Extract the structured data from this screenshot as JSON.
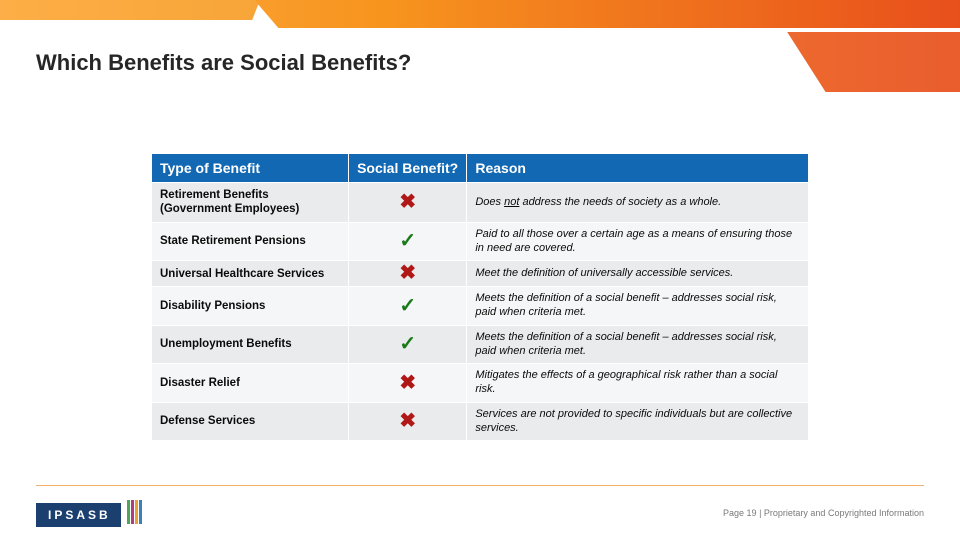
{
  "title": "Which Benefits are Social Benefits?",
  "colors": {
    "header_bg": "#1268b3",
    "header_text": "#ffffff",
    "row_odd_bg": "#e9ebed",
    "row_even_bg": "#f5f6f7",
    "check_color": "#1a7a1a",
    "cross_color": "#b01818",
    "gradient_start": "#fdae46",
    "gradient_end": "#e84f1c",
    "footer_line": "#f4b06a",
    "logo_bg": "#1b3f6e"
  },
  "table": {
    "col_widths_pct": [
      30,
      18,
      52
    ],
    "headers": {
      "c1": "Type of Benefit",
      "c2": "Social Benefit?",
      "c3": "Reason"
    },
    "rows": [
      {
        "type": "Retirement Benefits (Government Employees)",
        "social": false,
        "reason_prefix": "Does ",
        "reason_underlined": "not",
        "reason_suffix": " address the needs of society as a whole."
      },
      {
        "type": "State Retirement Pensions",
        "social": true,
        "reason": "Paid to all those over a certain age as a means of ensuring those in need are covered."
      },
      {
        "type": "Universal Healthcare Services",
        "social": false,
        "reason": "Meet the definition of universally accessible services."
      },
      {
        "type": "Disability Pensions",
        "social": true,
        "reason": "Meets the definition of a social benefit – addresses social risk, paid when criteria met."
      },
      {
        "type": "Unemployment Benefits",
        "social": true,
        "reason": "Meets the definition of a social benefit – addresses social risk, paid when criteria met."
      },
      {
        "type": "Disaster Relief",
        "social": false,
        "reason": "Mitigates the effects of a geographical risk rather than a social risk."
      },
      {
        "type": "Defense Services",
        "social": false,
        "reason": "Services are not provided to specific individuals but are collective services."
      }
    ]
  },
  "footer": {
    "page": "Page 19",
    "sep": " | ",
    "text": "Proprietary and Copyrighted Information"
  },
  "logo": {
    "text": "IPSASB"
  },
  "glyphs": {
    "check": "✓",
    "cross": "✖"
  }
}
